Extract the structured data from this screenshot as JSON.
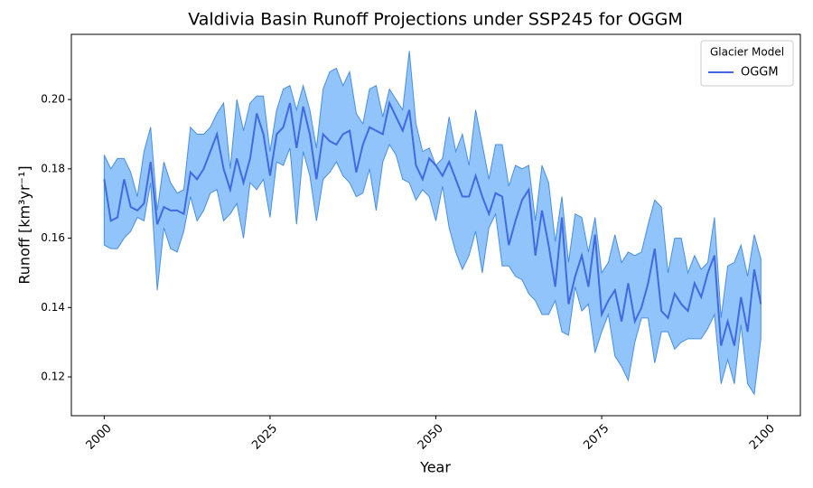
{
  "chart_data": {
    "type": "line",
    "title": "Valdivia Basin Runoff Projections under SSP245 for OGGM",
    "x_label": "Year",
    "y_label": "Runoff [km³yr⁻¹]",
    "legend_title": "Glacier Model",
    "legend_position": "upper right",
    "x": [
      2000,
      2001,
      2002,
      2003,
      2004,
      2005,
      2006,
      2007,
      2008,
      2009,
      2010,
      2011,
      2012,
      2013,
      2014,
      2015,
      2016,
      2017,
      2018,
      2019,
      2020,
      2021,
      2022,
      2023,
      2024,
      2025,
      2026,
      2027,
      2028,
      2029,
      2030,
      2031,
      2032,
      2033,
      2034,
      2035,
      2036,
      2037,
      2038,
      2039,
      2040,
      2041,
      2042,
      2043,
      2044,
      2045,
      2046,
      2047,
      2048,
      2049,
      2050,
      2051,
      2052,
      2053,
      2054,
      2055,
      2056,
      2057,
      2058,
      2059,
      2060,
      2061,
      2062,
      2063,
      2064,
      2065,
      2066,
      2067,
      2068,
      2069,
      2070,
      2071,
      2072,
      2073,
      2074,
      2075,
      2076,
      2077,
      2078,
      2079,
      2080,
      2081,
      2082,
      2083,
      2084,
      2085,
      2086,
      2087,
      2088,
      2089,
      2090,
      2091,
      2092,
      2093,
      2094,
      2095,
      2096,
      2097,
      2098,
      2099
    ],
    "series": [
      {
        "name": "OGGM",
        "color": "#4169e1",
        "band_color": "#90c4fa",
        "band_edge_color": "#4a8ee0",
        "values": [
          0.177,
          0.165,
          0.166,
          0.177,
          0.169,
          0.168,
          0.17,
          0.182,
          0.164,
          0.169,
          0.168,
          0.168,
          0.167,
          0.179,
          0.177,
          0.18,
          0.185,
          0.19,
          0.18,
          0.174,
          0.183,
          0.176,
          0.183,
          0.196,
          0.19,
          0.178,
          0.19,
          0.192,
          0.199,
          0.186,
          0.198,
          0.19,
          0.177,
          0.19,
          0.188,
          0.187,
          0.19,
          0.191,
          0.179,
          0.187,
          0.192,
          0.191,
          0.19,
          0.199,
          0.195,
          0.191,
          0.197,
          0.181,
          0.177,
          0.183,
          0.181,
          0.178,
          0.182,
          0.177,
          0.172,
          0.172,
          0.178,
          0.172,
          0.167,
          0.173,
          0.172,
          0.158,
          0.165,
          0.171,
          0.174,
          0.155,
          0.168,
          0.158,
          0.146,
          0.166,
          0.141,
          0.149,
          0.155,
          0.146,
          0.161,
          0.138,
          0.142,
          0.145,
          0.136,
          0.147,
          0.136,
          0.14,
          0.147,
          0.157,
          0.139,
          0.137,
          0.144,
          0.141,
          0.139,
          0.147,
          0.143,
          0.15,
          0.155,
          0.129,
          0.136,
          0.129,
          0.143,
          0.133,
          0.151,
          0.141
        ],
        "upper": [
          0.184,
          0.18,
          0.183,
          0.183,
          0.179,
          0.172,
          0.185,
          0.192,
          0.168,
          0.182,
          0.176,
          0.173,
          0.174,
          0.192,
          0.19,
          0.19,
          0.192,
          0.196,
          0.199,
          0.18,
          0.2,
          0.191,
          0.199,
          0.201,
          0.201,
          0.185,
          0.197,
          0.203,
          0.204,
          0.197,
          0.204,
          0.197,
          0.186,
          0.203,
          0.208,
          0.209,
          0.204,
          0.208,
          0.196,
          0.193,
          0.203,
          0.204,
          0.195,
          0.203,
          0.2,
          0.197,
          0.214,
          0.193,
          0.185,
          0.186,
          0.181,
          0.183,
          0.195,
          0.185,
          0.19,
          0.181,
          0.197,
          0.187,
          0.177,
          0.187,
          0.187,
          0.175,
          0.181,
          0.18,
          0.181,
          0.165,
          0.181,
          0.176,
          0.159,
          0.172,
          0.153,
          0.167,
          0.166,
          0.156,
          0.166,
          0.15,
          0.153,
          0.161,
          0.153,
          0.156,
          0.155,
          0.156,
          0.164,
          0.171,
          0.169,
          0.15,
          0.16,
          0.16,
          0.15,
          0.155,
          0.151,
          0.153,
          0.166,
          0.137,
          0.152,
          0.153,
          0.158,
          0.149,
          0.161,
          0.154
        ],
        "lower": [
          0.158,
          0.157,
          0.157,
          0.16,
          0.162,
          0.166,
          0.165,
          0.176,
          0.145,
          0.163,
          0.157,
          0.156,
          0.162,
          0.172,
          0.165,
          0.168,
          0.173,
          0.174,
          0.165,
          0.167,
          0.17,
          0.16,
          0.176,
          0.174,
          0.177,
          0.166,
          0.182,
          0.181,
          0.186,
          0.164,
          0.185,
          0.178,
          0.165,
          0.177,
          0.179,
          0.182,
          0.178,
          0.176,
          0.172,
          0.173,
          0.18,
          0.168,
          0.182,
          0.187,
          0.184,
          0.177,
          0.176,
          0.171,
          0.174,
          0.172,
          0.165,
          0.175,
          0.163,
          0.156,
          0.151,
          0.155,
          0.162,
          0.15,
          0.163,
          0.167,
          0.152,
          0.152,
          0.149,
          0.148,
          0.144,
          0.142,
          0.138,
          0.138,
          0.142,
          0.133,
          0.132,
          0.146,
          0.139,
          0.141,
          0.127,
          0.133,
          0.138,
          0.126,
          0.123,
          0.119,
          0.13,
          0.137,
          0.137,
          0.124,
          0.133,
          0.133,
          0.128,
          0.13,
          0.131,
          0.131,
          0.131,
          0.134,
          0.138,
          0.118,
          0.125,
          0.118,
          0.135,
          0.118,
          0.115,
          0.131
        ]
      }
    ],
    "xlim": [
      1995.05,
      2104.95
    ],
    "ylim": [
      0.1088,
      0.2188
    ],
    "xticks": [
      2000,
      2025,
      2050,
      2075,
      2100
    ],
    "yticks": [
      0.12,
      0.14,
      0.16,
      0.18,
      {
        "value": 0.2,
        "label": "0.20"
      }
    ]
  }
}
